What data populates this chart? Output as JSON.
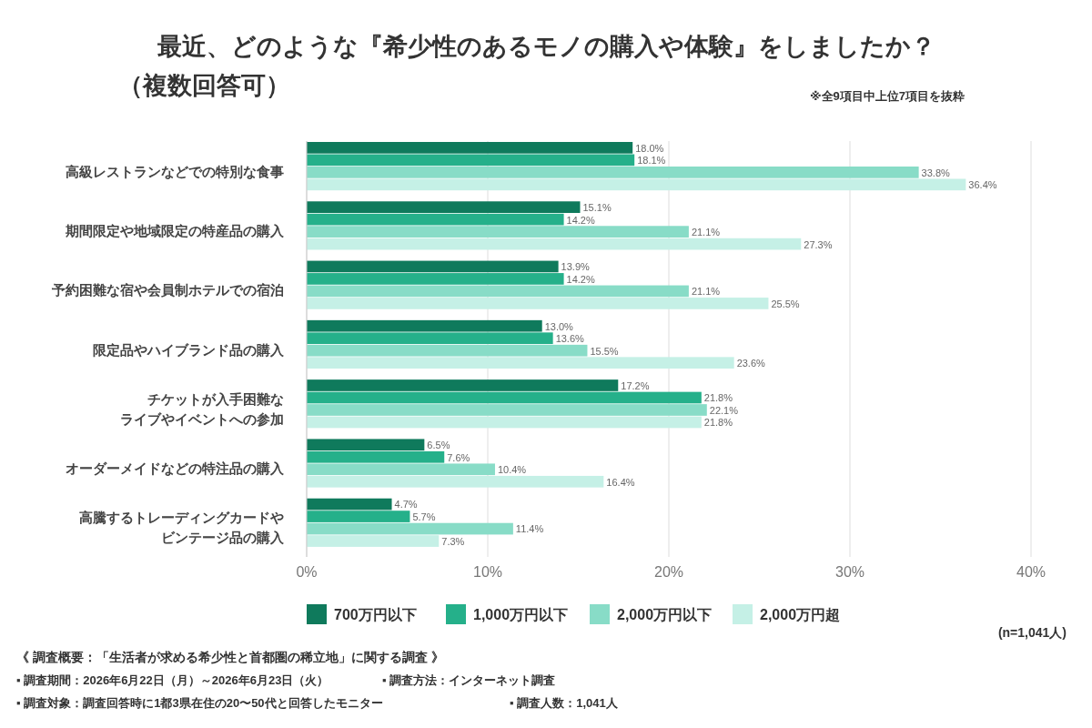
{
  "chart_data": {
    "type": "bar",
    "orientation": "horizontal",
    "title": "最近、どのような『希少性のあるモノの購入や体験』をしましたか？",
    "subtitle": "（複数回答可）",
    "categories": [
      "高級レストランなどでの特別な食事",
      "期間限定や地域限定の特産品の購入",
      "予約困難な宿や会員制ホテルでの宿泊",
      "限定品やハイブランド品の購入",
      "チケットが入手困難なライブやイベントへの参加",
      "オーダーメイドなどの特注品の購入",
      "高騰するトレーディングカードやビンテージ品の購入"
    ],
    "series": [
      {
        "name": "700万円以下",
        "color": "#0f7a5c",
        "values": [
          18.0,
          15.1,
          13.9,
          13.0,
          17.2,
          6.5,
          4.7
        ],
        "value_labels": [
          "18.0%",
          "15.1%",
          "13.9%",
          "13.0%",
          "17.2%",
          "6.5%",
          "4.7%"
        ]
      },
      {
        "name": "1,000万円以下",
        "color": "#25b08a",
        "values": [
          18.1,
          14.2,
          14.2,
          13.6,
          21.8,
          7.6,
          5.7
        ],
        "value_labels": [
          "18.1%",
          "14.2%",
          "14.2%",
          "13.6%",
          "21.8%",
          "7.6%",
          "5.7%"
        ]
      },
      {
        "name": "2,000万円以下",
        "color": "#88dcc7",
        "values": [
          33.8,
          21.1,
          21.1,
          15.5,
          22.1,
          10.4,
          11.4
        ],
        "value_labels": [
          "33.8%",
          "21.1%",
          "21.1%",
          "15.5%",
          "22.1%",
          "10.4%",
          "11.4%"
        ]
      },
      {
        "name": "2,000万円超",
        "color": "#c5f0e6",
        "values": [
          36.4,
          27.3,
          25.5,
          23.6,
          21.8,
          16.4,
          7.3
        ],
        "value_labels": [
          "36.4%",
          "27.3%",
          "25.5%",
          "23.6%",
          "21.8%",
          "16.4%",
          "7.3%"
        ]
      }
    ],
    "xlim": [
      0,
      40
    ],
    "xticks": [
      {
        "value": 0,
        "label": "0%"
      },
      {
        "value": 10,
        "label": "10%"
      },
      {
        "value": 20,
        "label": "20%"
      },
      {
        "value": 30,
        "label": "30%"
      },
      {
        "value": 40,
        "label": "40%"
      }
    ],
    "grid": "x",
    "legend": "bottom",
    "annotations": [
      "※全9項目中上位7項目を抜粋",
      "(n=1,041人)",
      "《 調査概要：「生活者が求める希少性と首都圏の稀立地」に関する調査 》",
      "▪ 調査期間：2026年6月22日（月）～2026年6月23日（火）",
      "▪ 調査方法：インターネット調査",
      "▪ 調査対象：調査回答時に1都3県在住の20〜50代と回答したモニター",
      "▪ 調査人数：1,041人"
    ]
  }
}
